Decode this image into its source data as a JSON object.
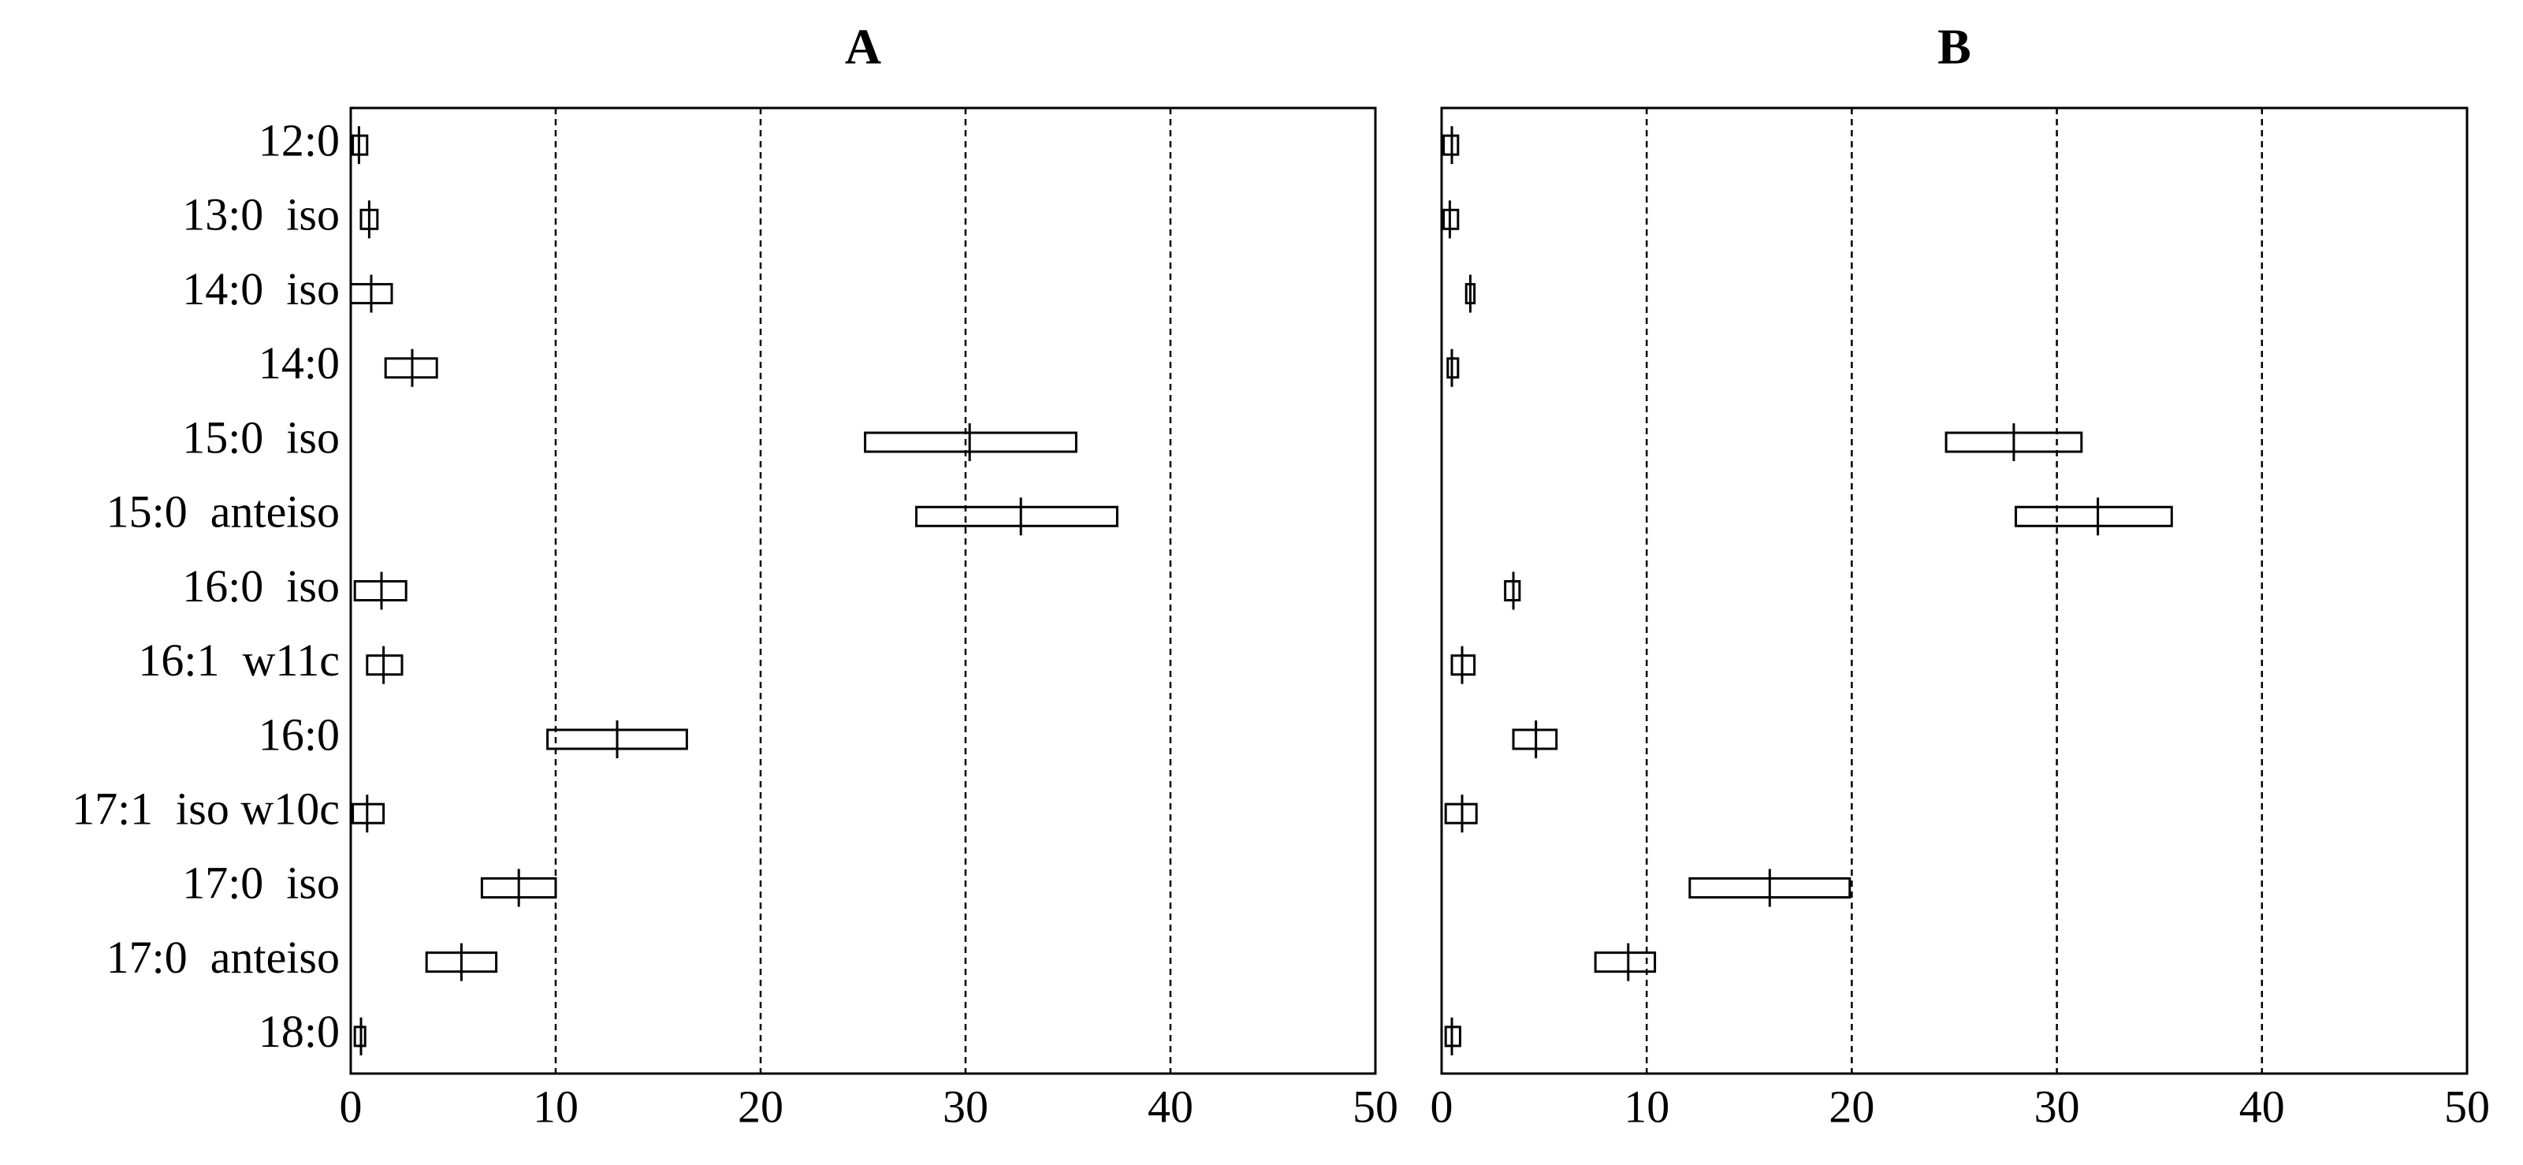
{
  "chart_data": [
    {
      "type": "range",
      "title": "A",
      "categories": [
        "12:0",
        "13:0  iso",
        "14:0  iso",
        "14:0",
        "15:0  iso",
        "15:0  anteiso",
        "16:0  iso",
        "16:1  w11c",
        "16:0",
        "17:1  iso w10c",
        "17:0  iso",
        "17:0  anteiso",
        "18:0"
      ],
      "low": [
        0.1,
        0.5,
        0.0,
        1.7,
        25.1,
        27.6,
        0.2,
        0.8,
        9.6,
        0.1,
        6.4,
        3.7,
        0.2
      ],
      "center": [
        0.4,
        0.9,
        1.0,
        3.0,
        30.2,
        32.7,
        1.5,
        1.6,
        13.0,
        0.8,
        8.2,
        5.4,
        0.5
      ],
      "high": [
        0.8,
        1.3,
        2.0,
        4.2,
        35.4,
        37.4,
        2.7,
        2.5,
        16.4,
        1.6,
        10.0,
        7.1,
        0.7
      ],
      "xlim": [
        0,
        50
      ],
      "xticks": [
        0,
        10,
        20,
        30,
        40,
        50
      ],
      "grid": true,
      "color": "#000000"
    },
    {
      "type": "range",
      "title": "B",
      "categories": [
        "12:0",
        "13:0  iso",
        "14:0  iso",
        "14:0",
        "15:0  iso",
        "15:0  anteiso",
        "16:0  iso",
        "16:1  w11c",
        "16:0",
        "17:1  iso w10c",
        "17:0  iso",
        "17:0  anteiso",
        "18:0"
      ],
      "low": [
        0.1,
        0.1,
        1.2,
        0.3,
        24.6,
        28.0,
        3.1,
        0.5,
        3.5,
        0.2,
        12.1,
        7.5,
        0.2
      ],
      "center": [
        0.5,
        0.4,
        1.4,
        0.5,
        27.9,
        32.0,
        3.5,
        1.0,
        4.6,
        1.0,
        16.0,
        9.1,
        0.5
      ],
      "high": [
        0.8,
        0.8,
        1.6,
        0.8,
        31.2,
        35.6,
        3.8,
        1.6,
        5.6,
        1.7,
        19.9,
        10.4,
        0.9
      ],
      "xlim": [
        0,
        50
      ],
      "xticks": [
        0,
        10,
        20,
        30,
        40,
        50
      ],
      "grid": true,
      "color": "#000000"
    }
  ]
}
